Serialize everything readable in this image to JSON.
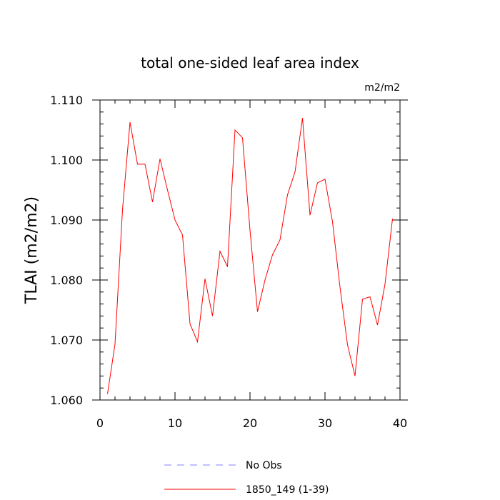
{
  "chart_data": {
    "type": "line",
    "title": "total one-sided leaf area index",
    "units_label": "m2/m2",
    "xlabel": "",
    "ylabel": "TLAI  (m2/m2)",
    "xlim": [
      0,
      40
    ],
    "ylim": [
      1.06,
      1.11
    ],
    "x_ticks": [
      0,
      10,
      20,
      30,
      40
    ],
    "x_tick_labels": [
      "0",
      "10",
      "20",
      "30",
      "40"
    ],
    "y_ticks": [
      1.06,
      1.07,
      1.08,
      1.09,
      1.1,
      1.11
    ],
    "y_tick_labels": [
      "1.060",
      "1.070",
      "1.080",
      "1.090",
      "1.100",
      "1.110"
    ],
    "grid": false,
    "legend_position": "bottom",
    "legend": [
      {
        "label": "No Obs",
        "color": "#8080ff",
        "style": "dashed"
      },
      {
        "label": "1850_149 (1-39)",
        "color": "#ff0000",
        "style": "solid"
      }
    ],
    "series": [
      {
        "name": "1850_149 (1-39)",
        "color": "#ff0000",
        "x": [
          1,
          2,
          3,
          4,
          5,
          6,
          7,
          8,
          9,
          10,
          11,
          12,
          13,
          14,
          15,
          16,
          17,
          18,
          19,
          20,
          21,
          22,
          23,
          24,
          25,
          26,
          27,
          28,
          29,
          30,
          31,
          32,
          33,
          34,
          35,
          36,
          37,
          38,
          39
        ],
        "y": [
          1.061,
          1.0693,
          1.0917,
          1.1063,
          1.0993,
          1.0993,
          1.093,
          1.1002,
          1.095,
          1.09,
          1.0875,
          1.0727,
          1.0697,
          1.0802,
          1.074,
          1.0848,
          1.0822,
          1.105,
          1.1037,
          1.0883,
          1.0747,
          1.08,
          1.0842,
          1.0867,
          1.0942,
          1.098,
          1.107,
          1.0908,
          1.0962,
          1.0968,
          1.0897,
          1.0788,
          1.0692,
          1.064,
          1.0768,
          1.0772,
          1.0725,
          1.0793,
          1.0902
        ]
      }
    ]
  }
}
